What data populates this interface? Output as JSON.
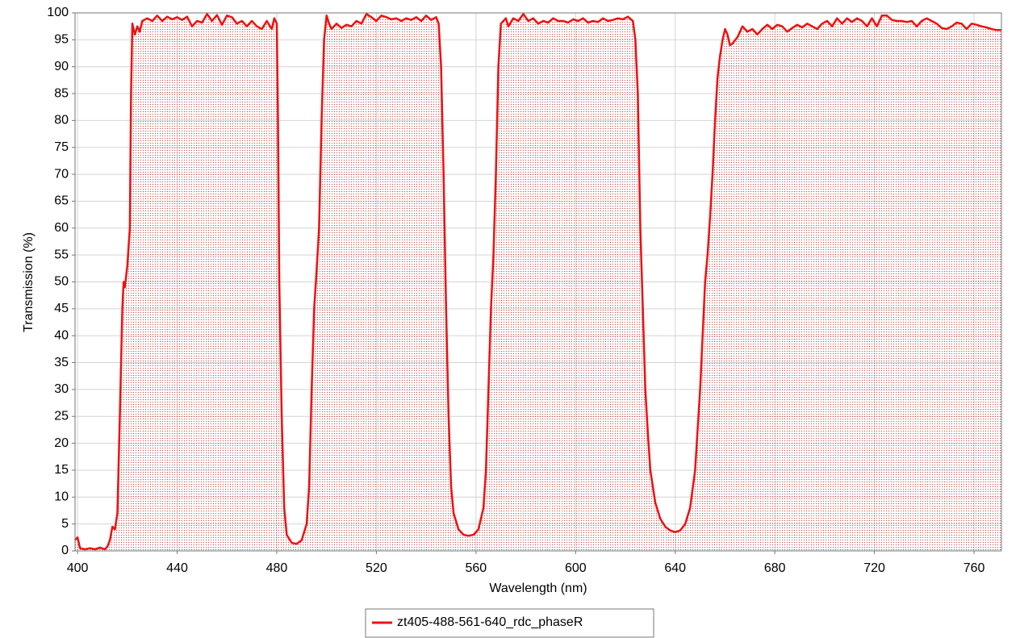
{
  "chart_data": {
    "type": "line",
    "x_label": "Wavelength (nm)",
    "y_label": "Transmission (%)",
    "xlim": [
      399,
      771
    ],
    "ylim": [
      0,
      100
    ],
    "xticks": [
      400,
      440,
      480,
      520,
      560,
      600,
      640,
      680,
      720,
      760
    ],
    "yticks": [
      0,
      5,
      10,
      15,
      20,
      25,
      30,
      35,
      40,
      45,
      50,
      55,
      60,
      65,
      70,
      75,
      80,
      85,
      90,
      95,
      100
    ],
    "grid": true,
    "fill": true,
    "legend": "bottom",
    "x": [
      399,
      400,
      401,
      403,
      405,
      407,
      409,
      411,
      412,
      413,
      414,
      415,
      416,
      417,
      418,
      418.5,
      419,
      420,
      421,
      421.5,
      422,
      423,
      424,
      425,
      426,
      428,
      430,
      432,
      434,
      436,
      438,
      440,
      442,
      444,
      446,
      448,
      450,
      452,
      454,
      456,
      458,
      460,
      462,
      464,
      466,
      468,
      470,
      472,
      474,
      476,
      478,
      479,
      480,
      480.5,
      481,
      482,
      483,
      484,
      486,
      488,
      490,
      492,
      493,
      494,
      495,
      496,
      497,
      498,
      499,
      500,
      501,
      502,
      504,
      506,
      508,
      510,
      512,
      514,
      516,
      518,
      520,
      522,
      524,
      526,
      528,
      530,
      532,
      534,
      536,
      538,
      540,
      542,
      544,
      545,
      546,
      547,
      548,
      549,
      550,
      551,
      553,
      555,
      557,
      559,
      561,
      563,
      564,
      565,
      566,
      567,
      568,
      569,
      570,
      572,
      573,
      575,
      577,
      579,
      581,
      583,
      585,
      587,
      589,
      591,
      593,
      595,
      597,
      599,
      601,
      603,
      605,
      607,
      609,
      611,
      613,
      615,
      617,
      619,
      621,
      623,
      624,
      625,
      626,
      627,
      628,
      629,
      630,
      632,
      634,
      636,
      638,
      640,
      642,
      644,
      646,
      648,
      650,
      651,
      652,
      653,
      654,
      655,
      656,
      657,
      658,
      659,
      660,
      661,
      662,
      663,
      665,
      667,
      669,
      671,
      673,
      675,
      677,
      679,
      681,
      683,
      685,
      687,
      689,
      691,
      693,
      695,
      697,
      699,
      701,
      703,
      705,
      707,
      709,
      711,
      713,
      715,
      717,
      719,
      721,
      723,
      725,
      727,
      729,
      731,
      733,
      735,
      737,
      739,
      741,
      743,
      745,
      747,
      749,
      751,
      753,
      755,
      757,
      759,
      761,
      763,
      765,
      767,
      769,
      771
    ],
    "series": [
      {
        "name": "zt405-488-561-640_rdc_phaseR",
        "color": "#ee1111",
        "values": [
          2,
          2.5,
          0.5,
          0.3,
          0.5,
          0.3,
          0.6,
          0.3,
          0.8,
          2,
          4.5,
          4,
          7,
          25,
          45,
          50,
          49,
          53,
          60,
          85,
          98,
          96,
          97.5,
          96.5,
          98.5,
          99,
          98.5,
          99.5,
          98.5,
          99.3,
          98.8,
          99.2,
          98.7,
          99.3,
          97.5,
          98.5,
          98.2,
          99.8,
          98.5,
          99.6,
          97.8,
          99.5,
          99.2,
          98,
          98.5,
          97.5,
          98.5,
          97.5,
          97,
          98.5,
          97,
          99,
          98,
          80,
          50,
          25,
          8,
          3,
          1.5,
          1.3,
          2,
          5,
          12,
          30,
          45,
          52,
          60,
          80,
          95,
          99.5,
          98,
          97,
          98,
          97.2,
          97.8,
          97.5,
          98.5,
          98,
          99.8,
          99.2,
          98.5,
          99.5,
          99.2,
          98.8,
          99,
          98.5,
          99,
          98.7,
          99.2,
          98.5,
          99.5,
          98.7,
          99.2,
          98,
          90,
          70,
          45,
          25,
          12,
          7,
          4,
          3,
          2.8,
          3,
          4,
          8,
          15,
          30,
          45,
          55,
          70,
          90,
          98,
          99,
          97.5,
          99,
          98.5,
          99.8,
          98.5,
          99,
          98,
          98.5,
          98.2,
          99,
          98.5,
          98.5,
          98.2,
          98.8,
          98.5,
          99,
          98.2,
          98.5,
          98.3,
          99,
          98.5,
          98.7,
          99,
          98.8,
          99.3,
          98.5,
          95,
          85,
          60,
          45,
          30,
          22,
          15,
          9,
          6,
          4.5,
          3.8,
          3.5,
          3.8,
          5,
          8,
          15,
          30,
          40,
          50,
          55,
          62,
          70,
          80,
          88,
          92,
          95,
          97,
          96,
          94,
          94.3,
          95.5,
          97.5,
          96.5,
          97,
          96,
          97,
          97.8,
          97,
          97.8,
          97.5,
          96.5,
          97.2,
          97.8,
          97.3,
          98,
          97.5,
          97,
          98,
          98.5,
          97.5,
          99,
          98,
          99,
          98.3,
          99,
          98.5,
          97.5,
          99,
          97.5,
          99.5,
          99.5,
          98.7,
          98.5,
          98.5,
          98.3,
          98.5,
          97.5,
          98.5,
          99,
          98.5,
          98,
          97.2,
          97,
          97.5,
          98.2,
          98,
          97,
          98,
          97.8,
          97.5,
          97.3,
          97,
          96.8,
          96.8
        ]
      }
    ]
  }
}
